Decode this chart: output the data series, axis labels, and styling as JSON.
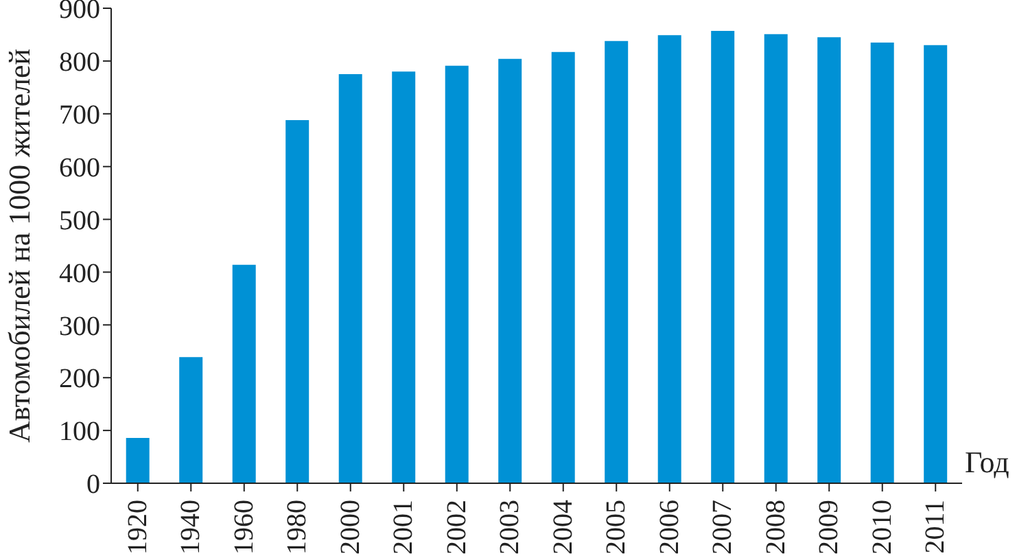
{
  "chart_data": {
    "type": "bar",
    "ylabel": "Автомобилей на 1000 жителей",
    "xlabel": "Год",
    "categories": [
      "1920",
      "1940",
      "1960",
      "1980",
      "2000",
      "2001",
      "2002",
      "2003",
      "2004",
      "2005",
      "2006",
      "2007",
      "2008",
      "2009",
      "2010",
      "2011"
    ],
    "values": [
      86,
      239,
      414,
      688,
      775,
      780,
      791,
      804,
      817,
      838,
      849,
      857,
      851,
      845,
      835,
      830
    ],
    "color": "#0091d5",
    "ylim": [
      0,
      900
    ],
    "yticks": [
      0,
      100,
      200,
      300,
      400,
      500,
      600,
      700,
      800,
      900
    ],
    "grid": false
  }
}
